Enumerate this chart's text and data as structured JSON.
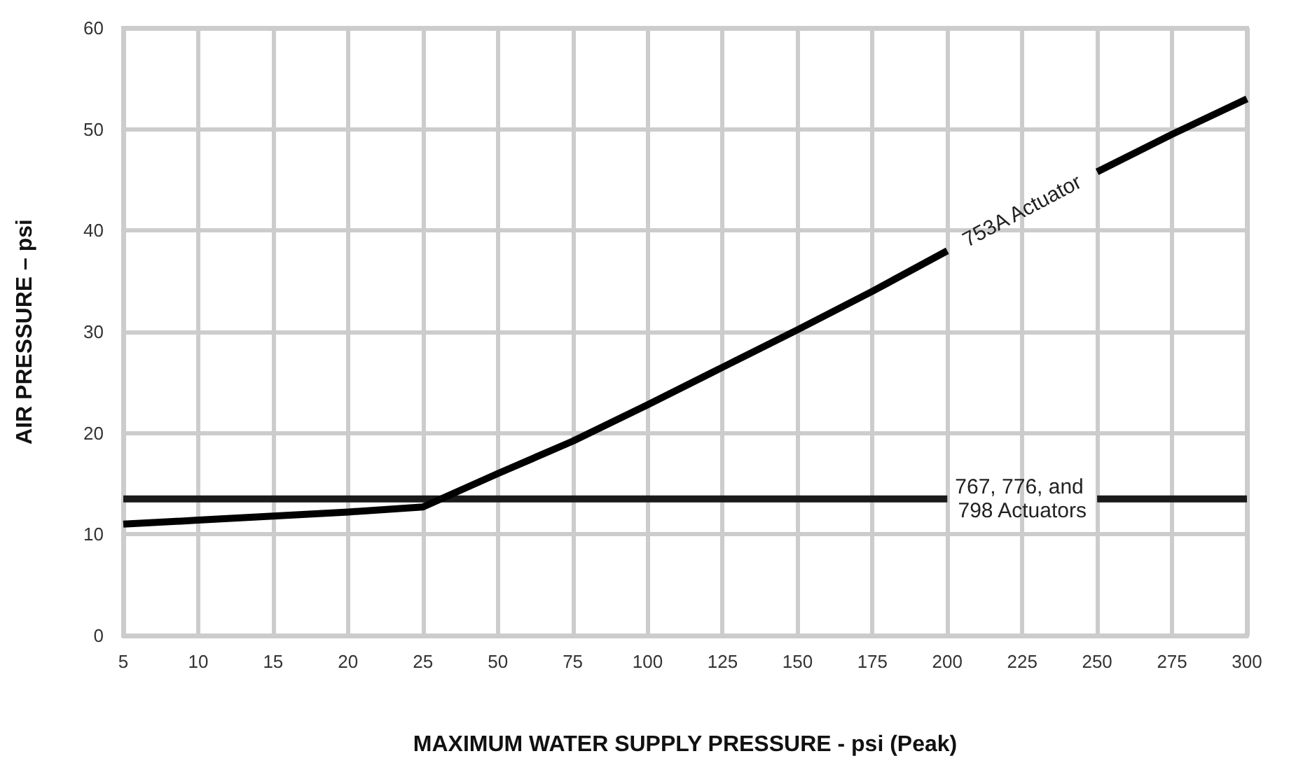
{
  "chart_data": {
    "type": "line",
    "xlabel": "MAXIMUM WATER SUPPLY PRESSURE - psi (Peak)",
    "ylabel": "AIR PRESSURE – psi",
    "categories": [
      "5",
      "10",
      "15",
      "20",
      "25",
      "50",
      "75",
      "100",
      "125",
      "150",
      "175",
      "200",
      "225",
      "250",
      "275",
      "300"
    ],
    "series": [
      {
        "name": "753A Actuator",
        "color": "#000000",
        "values": [
          11,
          11.4,
          11.8,
          12.2,
          12.7,
          16,
          19.2,
          22.8,
          26.5,
          30.2,
          34,
          38,
          null,
          45.8,
          49.5,
          53
        ]
      },
      {
        "name": "767, 776, and 798 Actuators",
        "color": "#1a1a1a",
        "values": [
          13.5,
          13.5,
          13.5,
          13.5,
          13.5,
          13.5,
          13.5,
          13.5,
          13.5,
          13.5,
          13.5,
          13.5,
          null,
          13.5,
          13.5,
          13.5
        ]
      }
    ],
    "ylim": [
      0,
      60
    ],
    "yticks": [
      0,
      10,
      20,
      30,
      40,
      50,
      60
    ],
    "grid": true,
    "legend": false,
    "marker": "none",
    "line_style": "solid"
  }
}
